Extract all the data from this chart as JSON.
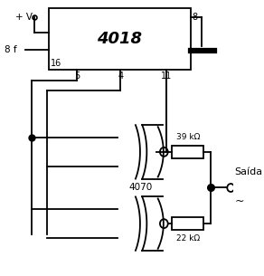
{
  "bg_color": "#ffffff",
  "ic_label": "4018",
  "xor_label": "4070",
  "res_top_label": "39 kΩ",
  "res_bot_label": "22 kΩ",
  "output_label": "Saída",
  "plus_v_label": "+ V",
  "freq_label": "8 f"
}
